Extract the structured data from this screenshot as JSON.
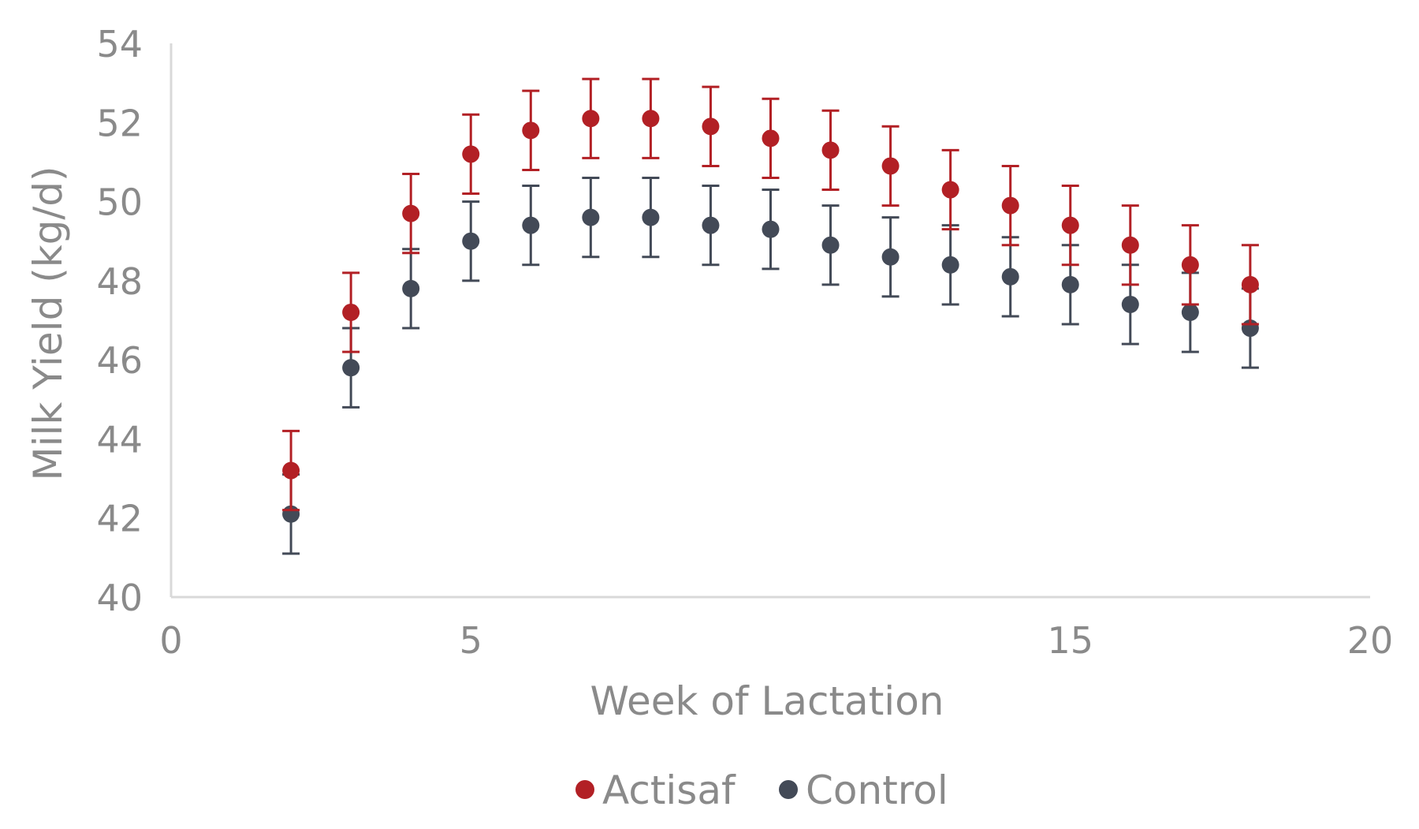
{
  "chart_data": {
    "type": "scatter",
    "title": "",
    "xlabel": "Week of Lactation",
    "ylabel": "Milk Yield (kg/d)",
    "xlim": [
      0,
      20
    ],
    "ylim": [
      40,
      54
    ],
    "x_ticks": [
      0,
      5,
      15,
      20
    ],
    "y_ticks": [
      40,
      42,
      44,
      46,
      48,
      50,
      52,
      54
    ],
    "grid": false,
    "legend": {
      "position": "bottom"
    },
    "error_bar_half_width": 1.0,
    "series": [
      {
        "name": "Actisaf",
        "color": "#b22025",
        "x": [
          2,
          3,
          4,
          5,
          6,
          7,
          8,
          9,
          10,
          11,
          12,
          13,
          14,
          15,
          16,
          17,
          18
        ],
        "y": [
          43.2,
          47.2,
          49.7,
          51.2,
          51.8,
          52.1,
          52.1,
          51.9,
          51.6,
          51.3,
          50.9,
          50.3,
          49.9,
          49.4,
          48.9,
          48.4,
          47.9
        ]
      },
      {
        "name": "Control",
        "color": "#434a57",
        "x": [
          2,
          3,
          4,
          5,
          6,
          7,
          8,
          9,
          10,
          11,
          12,
          13,
          14,
          15,
          16,
          17,
          18
        ],
        "y": [
          42.1,
          45.8,
          47.8,
          49.0,
          49.4,
          49.6,
          49.6,
          49.4,
          49.3,
          48.9,
          48.6,
          48.4,
          48.1,
          47.9,
          47.4,
          47.2,
          46.8
        ]
      }
    ]
  }
}
